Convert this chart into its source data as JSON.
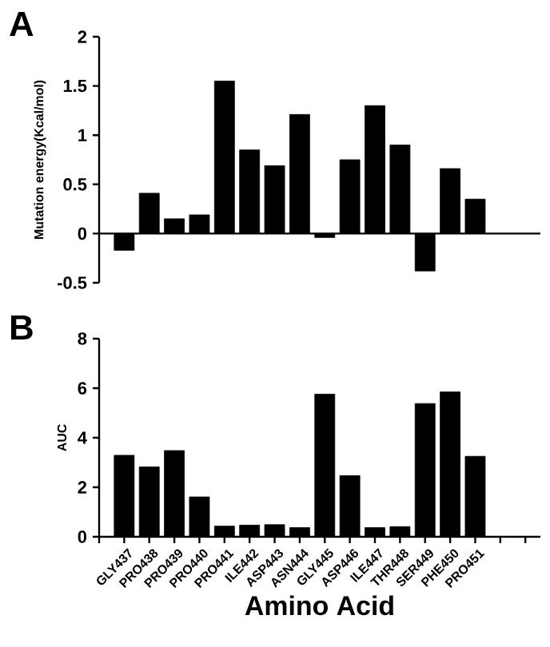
{
  "chart_data": [
    {
      "type": "bar",
      "title": "A",
      "ylabel": "Mutation energy(Kcal/mol)",
      "color": "#000000",
      "tick_labels": "y",
      "categories": [
        null,
        null,
        null,
        null,
        null,
        null,
        null,
        null,
        null,
        null,
        null,
        null,
        null,
        null,
        null,
        null,
        null,
        null
      ],
      "values": [
        null,
        -0.17,
        0.41,
        0.15,
        0.19,
        1.55,
        0.85,
        0.69,
        1.21,
        -0.04,
        0.75,
        1.3,
        0.9,
        -0.38,
        0.66,
        0.35,
        null,
        null
      ],
      "ylim": [
        -0.5,
        2
      ],
      "yticks": [
        -0.5,
        0,
        0.5,
        1,
        1.5,
        2
      ]
    },
    {
      "type": "bar",
      "title": "B",
      "ylabel": "AUC",
      "xlabel": "Amino Acid",
      "color": "#000000",
      "categories": [
        null,
        "GLY437",
        "PRO438",
        "PRO439",
        "PRO440",
        "PRO441",
        "ILE442",
        "ASP443",
        "ASN444",
        "GLY445",
        "ASP446",
        "ILE447",
        "THR448",
        "SER449",
        "PHE450",
        "PRO451",
        null,
        null
      ],
      "values": [
        null,
        3.29,
        2.82,
        3.48,
        1.61,
        0.43,
        0.47,
        0.49,
        0.37,
        5.76,
        2.47,
        0.37,
        0.41,
        5.38,
        5.85,
        3.25,
        null,
        null
      ],
      "ylim": [
        0,
        8
      ],
      "yticks": [
        0,
        2,
        4,
        6,
        8
      ]
    }
  ]
}
